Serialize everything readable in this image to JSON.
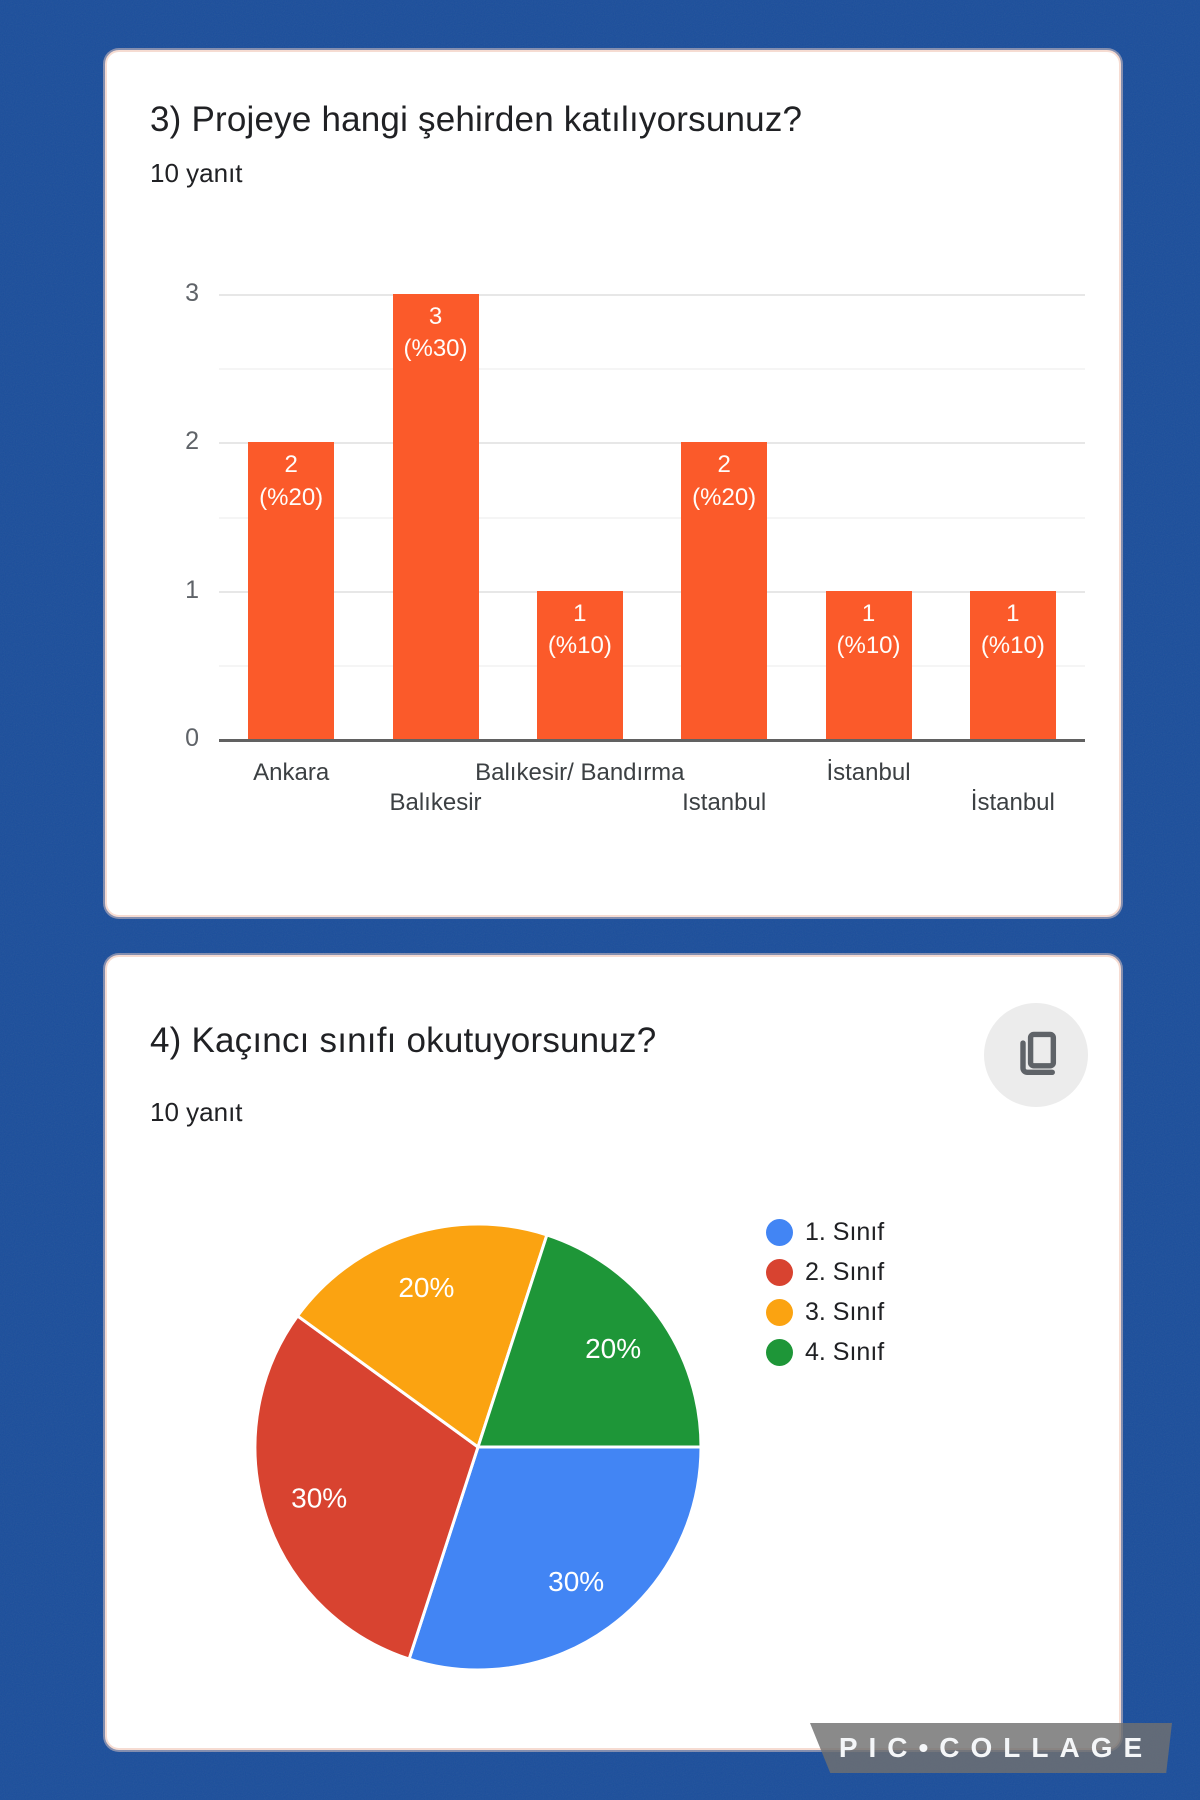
{
  "background_color": "#1B4E9B",
  "watermark": {
    "label": "PIC•COLLAGE"
  },
  "card1": {
    "title": "3) Projeye hangi şehirden katılıyorsunuz?",
    "responses": "10 yanıt"
  },
  "card2": {
    "title": "4) Kaçıncı sınıfı okutuyorsunuz?",
    "responses": "10 yanıt",
    "copy_button_icon": "content-copy-icon"
  },
  "chart_data": [
    {
      "type": "bar",
      "title": "3) Projeye hangi şehirden katılıyorsunuz?",
      "subtitle": "10 yanıt",
      "categories": [
        "Ankara",
        "Balıkesir",
        "Balıkesir/ Bandırma",
        "Istanbul",
        "İstanbul",
        "İstanbul"
      ],
      "values": [
        2,
        3,
        1,
        2,
        1,
        1
      ],
      "bar_labels": [
        [
          "2",
          "(%20)"
        ],
        [
          "3",
          "(%30)"
        ],
        [
          "1",
          "(%10)"
        ],
        [
          "2",
          "(%20)"
        ],
        [
          "1",
          "(%10)"
        ],
        [
          "1",
          "(%10)"
        ]
      ],
      "bar_color": "#FB5A2A",
      "xlabel": "",
      "ylabel": "",
      "y_ticks": [
        0,
        1,
        2,
        3
      ],
      "ylim": [
        0,
        3
      ],
      "grid": "horizontal major and minor gridlines",
      "legend_position": "none"
    },
    {
      "type": "pie",
      "title": "4) Kaçıncı sınıfı okutuyorsunuz?",
      "subtitle": "10 yanıt",
      "labels": [
        "1. Sınıf",
        "2. Sınıf",
        "3. Sınıf",
        "4. Sınıf"
      ],
      "values": [
        30,
        30,
        20,
        20
      ],
      "slice_labels": [
        "30%",
        "30%",
        "20%",
        "20%"
      ],
      "colors": [
        "#4285F4",
        "#D84330",
        "#FBA311",
        "#1E9638"
      ],
      "start_angle_deg": 90,
      "direction": "clockwise",
      "legend_position": "right"
    }
  ]
}
